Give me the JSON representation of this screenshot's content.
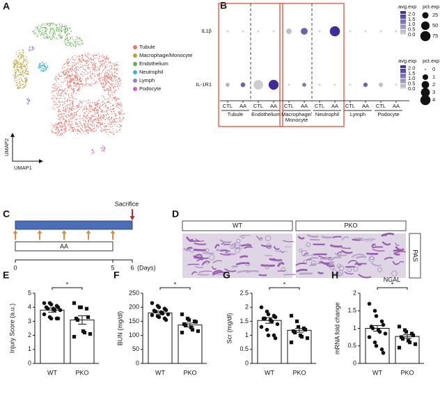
{
  "chart_data": [
    {
      "letter": "A",
      "type": "umap",
      "xlabel": "UMAP1",
      "ylabel": "UMAP2",
      "legend": [
        {
          "name": "Tubule",
          "color": "#e8756b"
        },
        {
          "name": "Macrophage/Monocyte",
          "color": "#b9a032"
        },
        {
          "name": "Endothelium",
          "color": "#62b451"
        },
        {
          "name": "Neutrophil",
          "color": "#3cb4cb"
        },
        {
          "name": "Lymph",
          "color": "#8c80d6"
        },
        {
          "name": "Podocyte",
          "color": "#d660ba"
        }
      ]
    },
    {
      "letter": "B",
      "type": "dotplot",
      "genes": [
        "IL1β",
        "IL-1R1"
      ],
      "groups": [
        [
          "Tubule"
        ],
        [
          "Endothelium"
        ],
        [
          "Macrophage/",
          "Monocyte"
        ],
        [
          "Neutrophil"
        ],
        [
          "Lymph"
        ],
        [
          "Podocyte"
        ]
      ],
      "conditions": [
        "CTL",
        "AA"
      ],
      "avg_exp": [
        [
          0,
          0,
          0,
          0,
          0.3,
          1.5,
          0,
          2.2,
          0,
          0,
          0,
          0
        ],
        [
          0.5,
          1.5,
          0.1,
          2.2,
          0,
          1.2,
          0,
          0,
          0,
          1.5,
          0.3,
          0
        ]
      ],
      "pct_exp": [
        [
          1,
          1,
          1,
          1,
          18,
          30,
          1,
          75,
          1,
          1,
          1,
          1
        ],
        [
          0.4,
          0.6,
          3.5,
          3.8,
          0.05,
          0.4,
          0.05,
          0.05,
          0.05,
          0.5,
          0.5,
          0.05
        ]
      ],
      "color_low": "#d4d4d4",
      "color_high": "#3a2296",
      "highlight_groups": [
        [
          0,
          1
        ],
        [
          2,
          3
        ]
      ],
      "highlight_color": "#e0523e",
      "legends": [
        {
          "color_title": "avg.exp",
          "color_lim": [
            0,
            2.3
          ],
          "color_ticks": [
            {
              "value": 2,
              "label": "2.0"
            },
            {
              "value": 1.5,
              "label": "1.5"
            },
            {
              "value": 1,
              "label": "1.0"
            },
            {
              "value": 0.5,
              "label": "0.5"
            },
            {
              "value": 0,
              "label": "0.0"
            }
          ],
          "size_title": "pct.exp",
          "size_lim": [
            0,
            75
          ],
          "size_ticks": [
            25,
            50,
            75
          ]
        },
        {
          "color_title": "avg.exp",
          "color_lim": [
            0,
            2.3
          ],
          "color_ticks": [
            {
              "value": 2,
              "label": "2.0"
            },
            {
              "value": 1.5,
              "label": "1.5"
            },
            {
              "value": 1,
              "label": "1.0"
            },
            {
              "value": 0.5,
              "label": "0.5"
            },
            {
              "value": 0,
              "label": "0.0"
            }
          ],
          "size_title": "pct.exp",
          "size_lim": [
            0,
            4
          ],
          "size_ticks": [
            0,
            1,
            2,
            3,
            4
          ]
        }
      ]
    },
    {
      "letter": "C",
      "type": "timeline",
      "event_label": "Sacrifice",
      "treatment_label": "AA",
      "treatment": [
        0,
        5
      ],
      "event_day": 6,
      "xlim": [
        0,
        6
      ],
      "xticks": [
        0,
        5,
        6
      ],
      "unit_label": "(Days)",
      "bar_color": "#4a6fb6",
      "arrow_color": "#e08a3a",
      "event_color": "#c0282d"
    },
    {
      "letter": "D",
      "type": "image",
      "columns": [
        "WT",
        "PKO"
      ],
      "stain": "PAS"
    },
    {
      "letter": "E",
      "type": "bar",
      "ylabel": "Injury Score (a.u.)",
      "categories": [
        "WT",
        "PKO"
      ],
      "values": [
        3.8,
        3.1
      ],
      "errors": [
        0.15,
        0.3
      ],
      "points": [
        [
          4.3,
          4.3,
          4.2,
          4.1,
          4.0,
          4.0,
          3.9,
          3.9,
          3.8,
          3.8,
          3.5,
          3.3,
          3.2,
          3.2,
          3.2
        ],
        [
          4.3,
          4.0,
          4.0,
          3.9,
          3.3,
          3.2,
          3.1,
          2.3,
          2.2,
          2.1,
          1.9
        ]
      ],
      "markers": [
        "circle",
        "square"
      ],
      "ylim": [
        0,
        5
      ],
      "yticks": [
        0,
        1,
        2,
        3,
        4,
        5
      ],
      "significance": "*"
    },
    {
      "letter": "F",
      "type": "bar",
      "ylabel": "BUN (mg/dl)",
      "categories": [
        "WT",
        "PKO"
      ],
      "values": [
        180,
        137
      ],
      "errors": [
        6,
        7
      ],
      "points": [
        [
          215,
          205,
          200,
          195,
          190,
          188,
          185,
          182,
          178,
          175,
          172,
          168,
          165,
          160,
          155
        ],
        [
          175,
          160,
          155,
          150,
          148,
          140,
          135,
          128,
          120,
          115,
          110
        ]
      ],
      "markers": [
        "circle",
        "square"
      ],
      "ylim": [
        0,
        250
      ],
      "yticks": [
        0,
        50,
        100,
        150,
        200,
        250
      ],
      "significance": "*"
    },
    {
      "letter": "G",
      "type": "bar",
      "ylabel": "Scr (mg/dl)",
      "categories": [
        "WT",
        "PKO"
      ],
      "values": [
        1.53,
        1.18
      ],
      "errors": [
        0.1,
        0.07
      ],
      "points": [
        [
          2.0,
          1.85,
          1.75,
          1.7,
          1.65,
          1.6,
          1.6,
          1.55,
          1.5,
          1.4,
          1.3,
          1.2,
          1.0,
          1.0,
          0.9
        ],
        [
          1.7,
          1.5,
          1.3,
          1.25,
          1.2,
          1.15,
          1.1,
          1.0,
          0.95,
          0.9,
          0.75
        ]
      ],
      "markers": [
        "circle",
        "square"
      ],
      "ylim": [
        0,
        2.5
      ],
      "yticks": [
        0,
        0.5,
        1,
        1.5,
        2,
        2.5
      ],
      "significance": "*"
    },
    {
      "letter": "H",
      "type": "bar",
      "title": "NGAL",
      "ylabel": "mRNA fold change",
      "categories": [
        "WT",
        "PKO"
      ],
      "values": [
        1.0,
        0.77
      ],
      "errors": [
        0.08,
        0.05
      ],
      "points": [
        [
          1.7,
          1.5,
          1.35,
          1.2,
          1.1,
          1.05,
          1.0,
          0.95,
          0.9,
          0.85,
          0.75,
          0.6,
          0.5,
          0.4,
          0.3
        ],
        [
          1.05,
          0.95,
          0.9,
          0.85,
          0.8,
          0.75,
          0.7,
          0.65,
          0.6,
          0.55,
          0.45
        ]
      ],
      "markers": [
        "circle",
        "square"
      ],
      "ylim": [
        0,
        2
      ],
      "yticks": [
        0,
        0.5,
        1,
        1.5,
        2
      ],
      "significance": "*"
    }
  ]
}
